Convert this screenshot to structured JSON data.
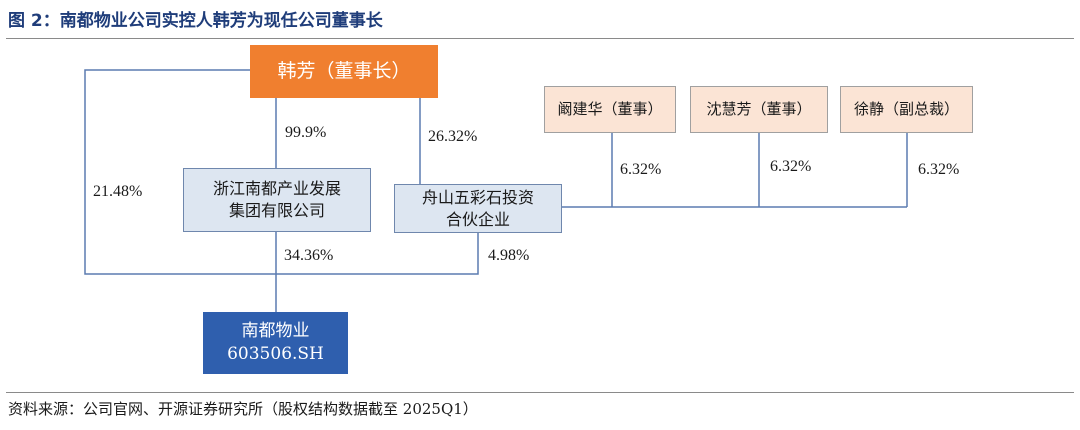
{
  "title": "图 2：南都物业公司实控人韩芳为现任公司董事长",
  "nodes": {
    "hanfang": "韩芳（董事长）",
    "zhejiang": [
      "浙江南都产业发展",
      "集团有限公司"
    ],
    "zhoushan": [
      "舟山五彩石投资",
      "合伙企业"
    ],
    "kanjianhua": "阚建华（董事）",
    "shenhuifang": "沈慧芳（董事）",
    "xujing": "徐静（副总裁）",
    "nandu": [
      "南都物业",
      "603506.SH"
    ]
  },
  "percentages": {
    "hanfang_to_zhejiang": "99.9%",
    "hanfang_to_zhoushan": "26.32%",
    "hanfang_to_nandu": "21.48%",
    "zhejiang_to_nandu": "34.36%",
    "zhoushan_to_nandu": "4.98%",
    "kanjianhua_to_zhoushan": "6.32%",
    "shenhuifang_to_zhoushan": "6.32%",
    "xujing_to_zhoushan": "6.32%"
  },
  "source": "资料来源：公司官网、开源证券研究所（股权结构数据截至 2025Q1）",
  "colors": {
    "title": "#1f3d7a",
    "chairman_box": "#f07f2f",
    "entity_box": "#dde6f1",
    "person_box": "#fbe4d5",
    "company_box": "#2f5fae",
    "line": "#5b7bb0"
  }
}
